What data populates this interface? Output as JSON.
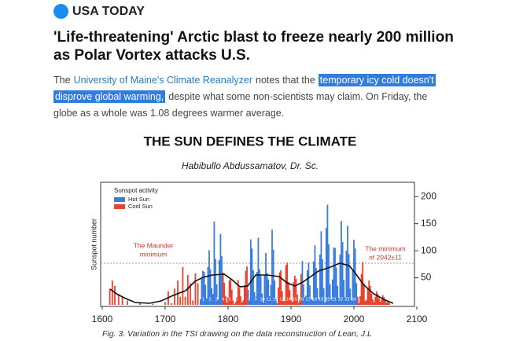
{
  "header": {
    "brand": "USA TODAY",
    "headline_lines": [
      "'Life-threatening' Arctic blast to freeze nearly 200 million",
      "as Polar Vortex attacks U.S."
    ]
  },
  "article": {
    "lines": [
      {
        "before": "The",
        "link": "University of Maine's Climate Reanalyzer",
        "after": "notes that the",
        "highlight": "temporary icy cold doesn't"
      },
      {
        "highlight": "disprove global warming,",
        "after": "despite what some non-scientists may claim. On Friday, the"
      },
      {
        "after": "globe as a whole was 1.08 degrees warmer average."
      }
    ]
  },
  "chart_data": {
    "type": "bar",
    "title": "THE SUN DEFINES THE CLIMATE",
    "subtitle": "Habibullo Abdussamatov, Dr. Sc.",
    "ylabel": "Sunspot number",
    "legend_title": "Sunspot activity",
    "legend": "top-left",
    "caption": "Fig. 3. Variation in the TSI drawing on the data reconstruction of Lean, J.L",
    "annotations": [
      {
        "lines": [
          "The Maunder",
          "minimum"
        ],
        "color": "#d9342b"
      },
      {
        "lines": [
          "The minimum",
          "of 2042±11"
        ],
        "color": "#d9342b"
      }
    ],
    "cycle_labels": [
      "1",
      "2",
      "3",
      "4",
      "5",
      "6",
      "7",
      "8",
      "9",
      "10",
      "11",
      "12",
      "13",
      "14",
      "15",
      "16",
      "17",
      "18",
      "19",
      "20",
      "21",
      "22",
      "23",
      "24"
    ],
    "xlim": [
      1600,
      2100
    ],
    "xticks": [
      1600,
      1700,
      1800,
      1900,
      2000,
      2100
    ],
    "ylim": [
      0,
      225
    ],
    "yticks": [
      50,
      100,
      150,
      200
    ],
    "series": [
      {
        "name": "Hot Sun",
        "color": "#3b7ddd",
        "x": [
          1756,
          1758,
          1760,
          1762,
          1764,
          1766,
          1768,
          1770,
          1772,
          1774,
          1776,
          1778,
          1780,
          1782,
          1784,
          1786,
          1788,
          1790,
          1832,
          1834,
          1836,
          1838,
          1840,
          1842,
          1844,
          1846,
          1848,
          1850,
          1852,
          1854,
          1856,
          1858,
          1860,
          1862,
          1864,
          1866,
          1868,
          1870,
          1872,
          1874,
          1876,
          1878,
          1918,
          1920,
          1922,
          1924,
          1926,
          1928,
          1930,
          1932,
          1934,
          1936,
          1938,
          1940,
          1942,
          1944,
          1946,
          1948,
          1950,
          1952,
          1954,
          1956,
          1958,
          1960,
          1962,
          1964,
          1966,
          1968,
          1970,
          1972,
          1974,
          1976,
          1978,
          1980,
          1982,
          1984,
          1986,
          1988,
          1990,
          1992,
          1994,
          1996,
          1998,
          2000,
          2002,
          2004
        ],
        "values": [
          10,
          48,
          63,
          61,
          37,
          12,
          70,
          101,
          66,
          31,
          20,
          154,
          85,
          38,
          10,
          83,
          131,
          90,
          28,
          13,
          121,
          104,
          64,
          24,
          15,
          61,
          124,
          66,
          54,
          21,
          4,
          55,
          96,
          59,
          47,
          16,
          37,
          139,
          102,
          45,
          11,
          3,
          81,
          38,
          14,
          17,
          64,
          78,
          36,
          11,
          9,
          80,
          110,
          68,
          31,
          10,
          93,
          136,
          84,
          31,
          4,
          142,
          185,
          112,
          38,
          10,
          47,
          106,
          105,
          69,
          35,
          13,
          93,
          155,
          116,
          46,
          14,
          100,
          146,
          94,
          30,
          9,
          64,
          120,
          104,
          40
        ]
      },
      {
        "name": "Cool Sun",
        "color": "#e8432e",
        "x": [
          1612,
          1616,
          1620,
          1626,
          1632,
          1640,
          1660,
          1680,
          1700,
          1705,
          1710,
          1715,
          1720,
          1724,
          1728,
          1732,
          1736,
          1740,
          1744,
          1748,
          1752,
          1792,
          1794,
          1796,
          1798,
          1800,
          1802,
          1804,
          1806,
          1808,
          1810,
          1812,
          1814,
          1816,
          1818,
          1820,
          1822,
          1824,
          1826,
          1828,
          1830,
          1880,
          1882,
          1884,
          1886,
          1888,
          1890,
          1892,
          1894,
          1896,
          1898,
          1900,
          1902,
          1904,
          1906,
          1908,
          1910,
          1912,
          1914,
          1916,
          2006,
          2008,
          2010,
          2012,
          2014,
          2016,
          2018,
          2020,
          2022,
          2024,
          2026,
          2028,
          2030,
          2032,
          2034,
          2036,
          2038,
          2040,
          2042,
          2044,
          2046,
          2048,
          2050,
          2052,
          2054,
          2056
        ],
        "values": [
          30,
          45,
          35,
          20,
          15,
          8,
          3,
          2,
          5,
          25,
          3,
          30,
          45,
          15,
          70,
          15,
          55,
          40,
          8,
          58,
          40,
          60,
          41,
          16,
          4,
          14,
          45,
          48,
          28,
          8,
          1,
          5,
          14,
          46,
          31,
          16,
          4,
          8,
          36,
          63,
          71,
          32,
          60,
          64,
          25,
          7,
          7,
          73,
          78,
          42,
          27,
          9,
          5,
          42,
          54,
          48,
          19,
          4,
          10,
          57,
          15,
          3,
          16,
          57,
          79,
          40,
          7,
          9,
          30,
          45,
          35,
          20,
          10,
          5,
          15,
          25,
          20,
          12,
          6,
          10,
          18,
          14,
          8,
          4,
          6,
          4
        ]
      }
    ]
  }
}
